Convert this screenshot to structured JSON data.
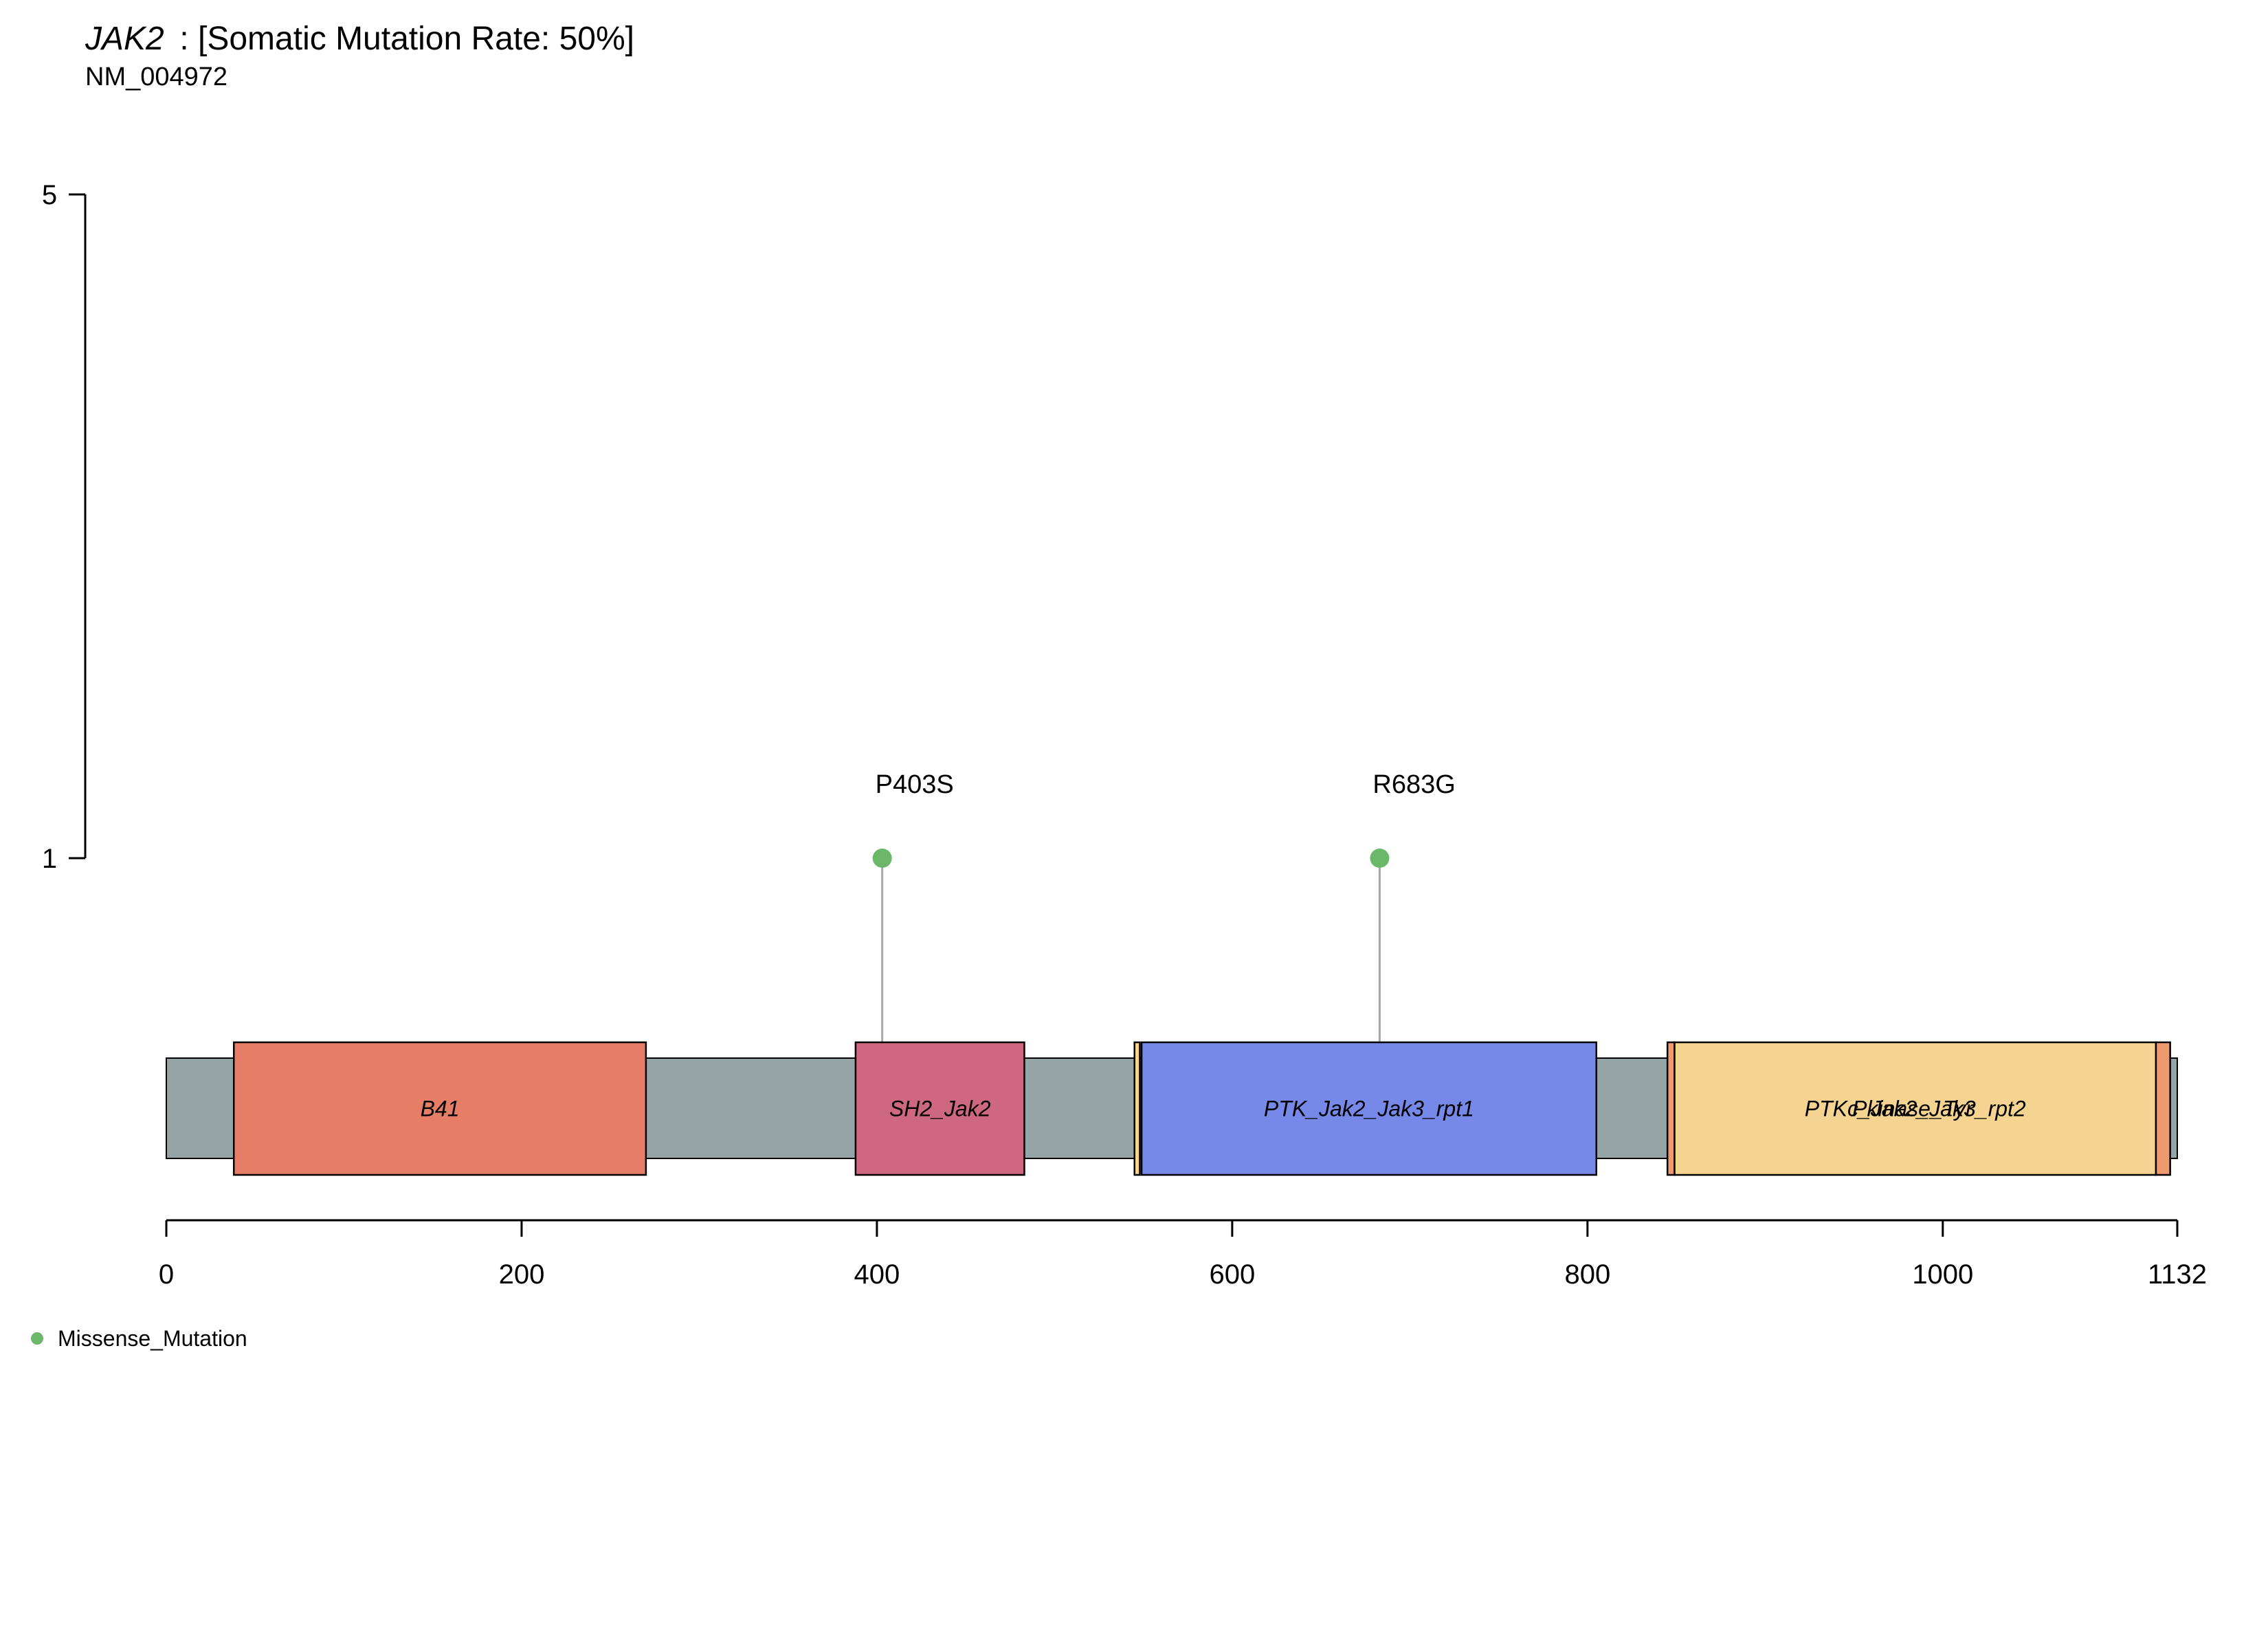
{
  "chart_data": {
    "type": "lollipop",
    "title": {
      "gene": "JAK2",
      "rest": " : [Somatic Mutation Rate: 50%]"
    },
    "subtitle": "NM_004972",
    "protein_length": 1132,
    "x_ticks": [
      0,
      200,
      400,
      600,
      800,
      1000,
      1132
    ],
    "y_range": [
      1,
      5
    ],
    "y_ticks": [
      1,
      5
    ],
    "backbone_color": "#95A5A6",
    "domains": [
      {
        "label": "B41",
        "start": 38,
        "end": 270,
        "color": "#E67E67"
      },
      {
        "label": "SH2_Jak2",
        "start": 388,
        "end": 483,
        "color": "#CD6880"
      },
      {
        "label": "",
        "start": 545,
        "end": 548,
        "color": "#F5D491"
      },
      {
        "label": "PTK_Jak2_Jak3_rpt1",
        "start": 549,
        "end": 805,
        "color": "#7789E8"
      },
      {
        "label": "",
        "start": 845,
        "end": 849,
        "color": "#EE9A6F"
      },
      {
        "label": "PTKc_Jak2_Jak3_rpt2",
        "start": 849,
        "end": 1120,
        "color": "#F5D491"
      },
      {
        "label": "Pkinase_Tyr",
        "start": 849,
        "end": 1117,
        "color": "none"
      },
      {
        "label": "",
        "start": 1120,
        "end": 1128,
        "color": "#EE9A6F"
      }
    ],
    "mutations": [
      {
        "label": "P403S",
        "position": 403,
        "count": 1,
        "type": "Missense_Mutation"
      },
      {
        "label": "R683G",
        "position": 683,
        "count": 1,
        "type": "Missense_Mutation"
      }
    ],
    "legend": [
      {
        "label": "Missense_Mutation",
        "color": "#6BB86B"
      }
    ],
    "legend_position": "bottom-left"
  }
}
